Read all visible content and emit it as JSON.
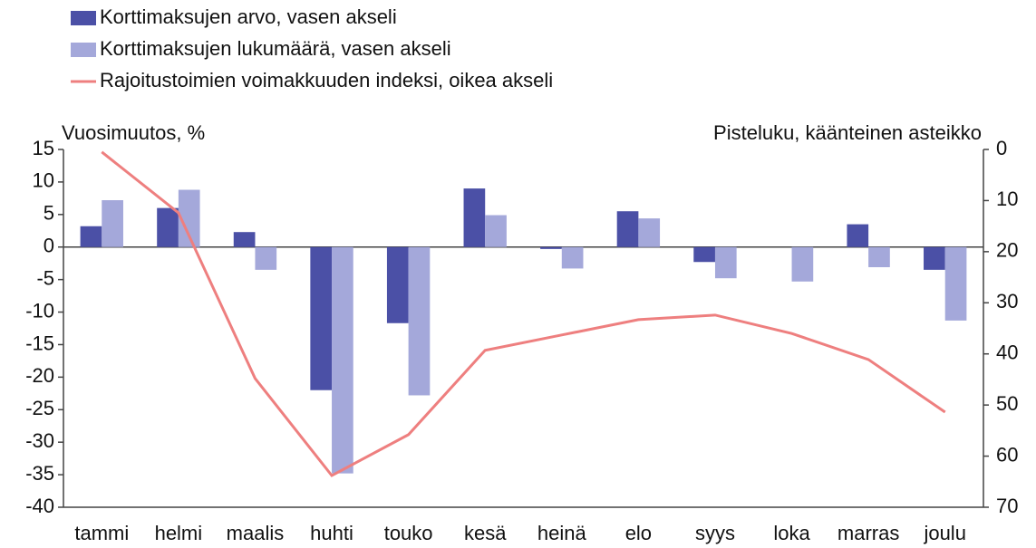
{
  "chart_data": {
    "type": "bar_line",
    "categories": [
      "tammi",
      "helmi",
      "maalis",
      "huhti",
      "touko",
      "kesä",
      "heinä",
      "elo",
      "syys",
      "loka",
      "marras",
      "joulu"
    ],
    "series": [
      {
        "name": "Korttimaksujen arvo, vasen akseli",
        "type": "bar",
        "color": "#4b50a6",
        "values": [
          3.2,
          6,
          2.3,
          -22,
          -11.7,
          9,
          -0.3,
          5.5,
          -2.3,
          0,
          3.5,
          -3.5
        ]
      },
      {
        "name": "Korttimaksujen lukumäärä, vasen akseli",
        "type": "bar",
        "color": "#a4a8da",
        "values": [
          7.2,
          8.8,
          -3.5,
          -34.8,
          -22.8,
          4.9,
          -3.3,
          4.4,
          -4.8,
          -5.3,
          -3.1,
          -11.3
        ]
      },
      {
        "name": "Rajoitustoimien voimakkuuden indeksi, oikea akseli",
        "type": "line",
        "axis": "y2",
        "color": "#ee7f7f",
        "values": [
          0.5,
          12.4,
          44.8,
          63.8,
          55.8,
          39.3,
          36.3,
          33.3,
          32.4,
          36,
          41.1,
          51.4
        ]
      }
    ],
    "y_label": "Vuosimuutos, %",
    "y2_label": "Pisteluku, käänteinen asteikko",
    "ylim": [
      -40,
      15
    ],
    "yticks": [
      15,
      10,
      5,
      0,
      -5,
      -10,
      -15,
      -20,
      -25,
      -30,
      -35,
      -40
    ],
    "y2lim": [
      0,
      70
    ],
    "y2ticks": [
      0,
      10,
      20,
      30,
      40,
      50,
      60,
      70
    ],
    "y2_inverted": true,
    "legend": "top-left"
  }
}
